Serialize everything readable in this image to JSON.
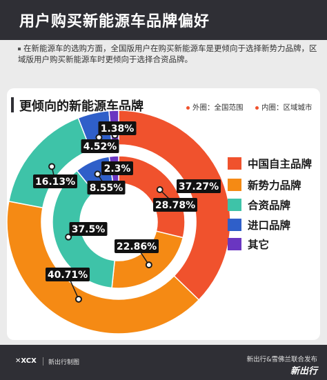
{
  "header": {
    "title": "用户购买新能源车品牌偏好",
    "description": "在新能源车的选购方面，全国版用户在购买新能源车是更倾向于选择新势力品牌，区域版用户购买新能源车时更倾向于选择合资品牌。"
  },
  "chart_title": "更倾向的新能源车品牌",
  "ring_legend": {
    "outer": "外圈：全国范围",
    "inner": "内圈：区域城市"
  },
  "colors": {
    "中国自主品牌": "#f0522d",
    "新势力品牌": "#f58a14",
    "合资品牌": "#3ec3a8",
    "进口品牌": "#2f5fc9",
    "其它": "#6a36c1"
  },
  "chart_data": {
    "type": "pie",
    "style": "double donut",
    "title": "更倾向的新能源车品牌",
    "categories": [
      "中国自主品牌",
      "新势力品牌",
      "合资品牌",
      "进口品牌",
      "其它"
    ],
    "series": [
      {
        "name": "外圈：全国范围",
        "values": [
          37.27,
          40.71,
          16.13,
          4.52,
          1.38
        ],
        "labels": [
          "37.27%",
          "40.71%",
          "16.13%",
          "4.52%",
          "1.38%"
        ]
      },
      {
        "name": "内圈：区域城市",
        "values": [
          28.78,
          22.86,
          37.5,
          8.55,
          2.3
        ],
        "labels": [
          "28.78%",
          "22.86%",
          "37.5%",
          "8.55%",
          "2.3%"
        ]
      }
    ],
    "legend": "right"
  },
  "footer": {
    "logo": "✕XCX",
    "left": "新出行制图",
    "right_line1": "新出行&雪佛兰联合发布",
    "right_line2": "新出行"
  }
}
